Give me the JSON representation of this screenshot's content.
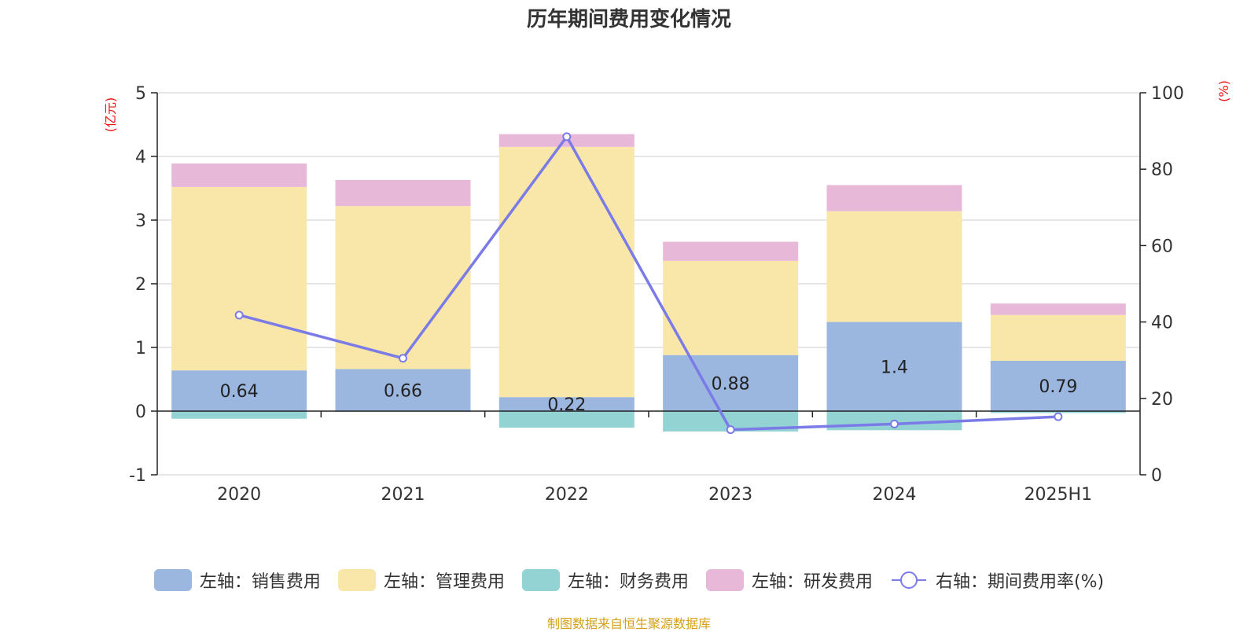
{
  "chart_data": {
    "type": "bar",
    "title": "历年期间费用变化情况",
    "categories": [
      "2020",
      "2021",
      "2022",
      "2023",
      "2024",
      "2025H1"
    ],
    "left_axis": {
      "unit_label": "(亿元)",
      "ylim": [
        -1,
        5
      ],
      "ticks": [
        "-1",
        "0",
        "1",
        "2",
        "3",
        "4",
        "5"
      ]
    },
    "right_axis": {
      "unit_label": "(%)",
      "ylim": [
        0,
        100
      ],
      "ticks": [
        "0",
        "20",
        "40",
        "60",
        "80",
        "100"
      ]
    },
    "grid": true,
    "legend_position": "bottom",
    "series": [
      {
        "name": "左轴：销售费用",
        "type": "bar",
        "axis": "left",
        "color": "#9bb7e0",
        "values": [
          0.64,
          0.66,
          0.22,
          0.88,
          1.4,
          0.79
        ],
        "value_labels": [
          "0.64",
          "0.66",
          "0.22",
          "0.88",
          "1.4",
          "0.79"
        ]
      },
      {
        "name": "左轴：管理费用",
        "type": "bar",
        "axis": "left",
        "color": "#f8e7a8",
        "values": [
          2.88,
          2.56,
          3.93,
          1.48,
          1.74,
          0.72
        ]
      },
      {
        "name": "左轴：财务费用",
        "type": "bar",
        "axis": "left",
        "color": "#94d3d3",
        "values": [
          -0.12,
          -0.01,
          -0.26,
          -0.32,
          -0.3,
          -0.03
        ]
      },
      {
        "name": "左轴：研发费用",
        "type": "bar",
        "axis": "left",
        "color": "#e8b8d8",
        "values": [
          0.37,
          0.41,
          0.2,
          0.3,
          0.41,
          0.18
        ]
      },
      {
        "name": "右轴：期间费用率(%)",
        "type": "line",
        "axis": "right",
        "color": "#7b7be8",
        "values": [
          41.8,
          30.5,
          88.5,
          11.8,
          13.3,
          15.2
        ]
      }
    ]
  },
  "source_note": "制图数据来自恒生聚源数据库"
}
